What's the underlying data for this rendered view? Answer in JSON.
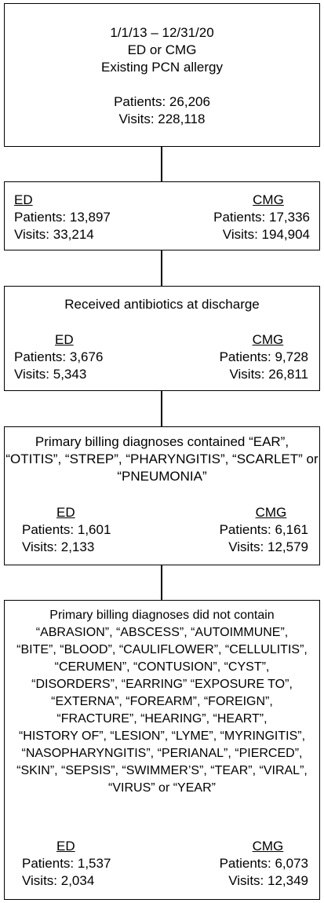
{
  "box1": {
    "lines": [
      "1/1/13 – 12/31/20",
      "ED or CMG",
      "Existing PCN allergy"
    ],
    "patients": "Patients: 26,206",
    "visits": "Visits: 228,118"
  },
  "box2": {
    "left": {
      "heading": "ED",
      "patients": "Patients: 13,897",
      "visits": "Visits: 33,214"
    },
    "right": {
      "heading": "CMG",
      "patients": "Patients: 17,336",
      "visits": "Visits: 194,904"
    }
  },
  "box3": {
    "title": "Received antibiotics at discharge",
    "left": {
      "heading": "ED",
      "patients": "Patients: 3,676",
      "visits": "Visits: 5,343"
    },
    "right": {
      "heading": "CMG",
      "patients": "Patients: 9,728",
      "visits": "Visits: 26,811"
    }
  },
  "box4": {
    "title_lines": [
      "Primary billing diagnoses contained “EAR”,",
      "“OTITIS”, “STREP”, “PHARYNGITIS”, “SCARLET” or",
      "“PNEUMONIA”"
    ],
    "left": {
      "heading": "ED",
      "patients": "Patients: 1,601",
      "visits": "Visits: 2,133"
    },
    "right": {
      "heading": "CMG",
      "patients": "Patients: 6,161",
      "visits": "Visits: 12,579"
    }
  },
  "box5": {
    "title_lines": [
      "Primary billing diagnoses did not contain",
      "“ABRASION”, “ABSCESS”, “AUTOIMMUNE”,",
      "“BITE”, “BLOOD”, “CAULIFLOWER”, “CELLULITIS”,",
      "“CERUMEN”, “CONTUSION”, “CYST”,",
      "“DISORDERS”, “EARRING” “EXPOSURE TO”,",
      "“EXTERNA”, “FOREARM”, “FOREIGN”,",
      "“FRACTURE”, “HEARING”, “HEART”,",
      "“HISTORY OF”, “LESION”, “LYME”, “MYRINGITIS”,",
      "“NASOPHARYNGITIS”, “PERIANAL”, “PIERCED”,",
      "“SKIN”, “SEPSIS”, “SWIMMER’S”, “TEAR”, “VIRAL”,",
      "“VIRUS” or “YEAR”"
    ],
    "left": {
      "heading": "ED",
      "patients": "Patients: 1,537",
      "visits": "Visits: 2,034"
    },
    "right": {
      "heading": "CMG",
      "patients": "Patients: 6,073",
      "visits": "Visits: 12,349"
    }
  }
}
